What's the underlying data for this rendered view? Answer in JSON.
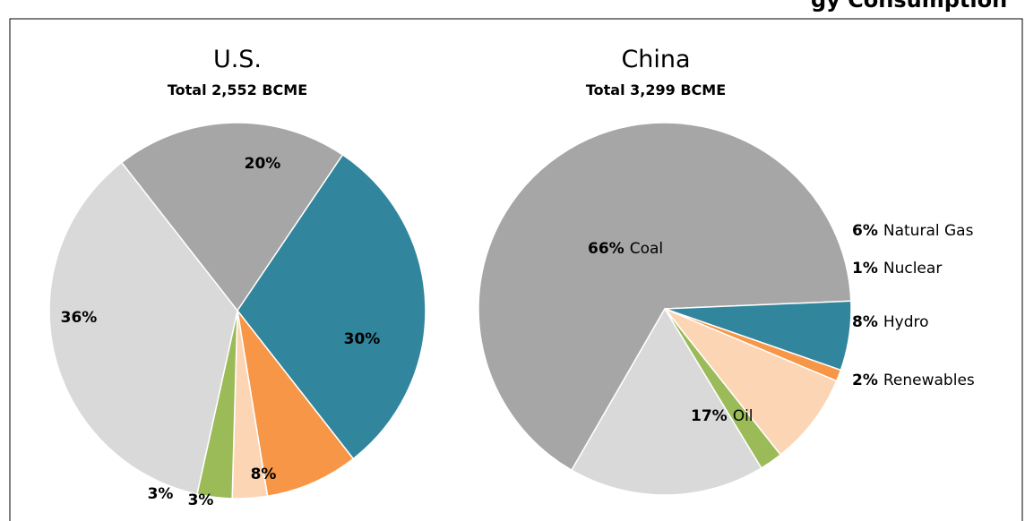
{
  "header": {
    "title_visible": "gy Consumption"
  },
  "colors": {
    "Coal": "#a6a6a6",
    "Natural Gas": "#31859c",
    "Nuclear": "#f79646",
    "Hydro": "#fcd5b5",
    "Renewables": "#9bbb59",
    "Oil": "#d9d9d9",
    "frame": "#000000",
    "slice_border": "#ffffff"
  },
  "chart_data": [
    {
      "type": "pie",
      "title": "U.S.",
      "subtitle": "Total 2,552 BCME",
      "slices": [
        {
          "category": "Coal",
          "value": 20,
          "label": "20%"
        },
        {
          "category": "Natural Gas",
          "value": 30,
          "label": "30%"
        },
        {
          "category": "Nuclear",
          "value": 8,
          "label": "8%"
        },
        {
          "category": "Hydro",
          "value": 3,
          "label": "3%"
        },
        {
          "category": "Renewables",
          "value": 3,
          "label": "3%"
        },
        {
          "category": "Oil",
          "value": 36,
          "label": "36%"
        }
      ]
    },
    {
      "type": "pie",
      "title": "China",
      "subtitle": "Total 3,299 BCME",
      "slices": [
        {
          "category": "Coal",
          "value": 66,
          "label": "66%",
          "name_label": "Coal"
        },
        {
          "category": "Natural Gas",
          "value": 6,
          "label": "6%",
          "name_label": "Natural Gas"
        },
        {
          "category": "Nuclear",
          "value": 1,
          "label": "1%",
          "name_label": "Nuclear"
        },
        {
          "category": "Hydro",
          "value": 8,
          "label": "8%",
          "name_label": "Hydro"
        },
        {
          "category": "Renewables",
          "value": 2,
          "label": "2%",
          "name_label": "Renewables"
        },
        {
          "category": "Oil",
          "value": 17,
          "label": "17%",
          "name_label": "Oil"
        }
      ]
    }
  ]
}
